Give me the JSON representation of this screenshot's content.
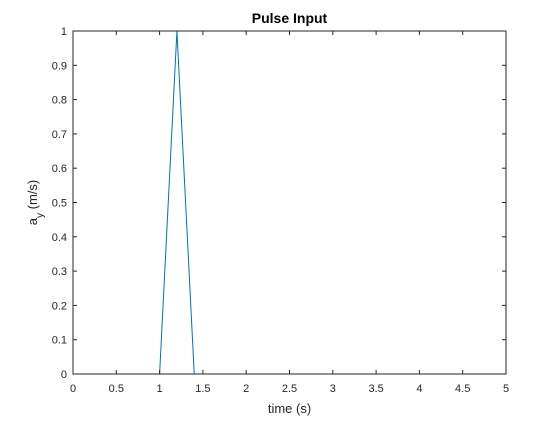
{
  "chart_data": {
    "type": "line",
    "title": "Pulse Input",
    "xlabel": "time (s)",
    "ylabel": {
      "main": "a",
      "subscript": "y",
      "unit": " (m/s)"
    },
    "xlim": [
      0,
      5
    ],
    "ylim": [
      0,
      1
    ],
    "x_ticks": [
      0,
      0.5,
      1,
      1.5,
      2,
      2.5,
      3,
      3.5,
      4,
      4.5,
      5
    ],
    "y_ticks": [
      0,
      0.1,
      0.2,
      0.3,
      0.4,
      0.5,
      0.6,
      0.7,
      0.8,
      0.9,
      1
    ],
    "grid": false,
    "box": true,
    "series": [
      {
        "color": "#0072BD",
        "x": [
          0,
          1.0,
          1.2,
          1.4,
          5
        ],
        "y": [
          0,
          0,
          1,
          0,
          0
        ]
      }
    ]
  }
}
